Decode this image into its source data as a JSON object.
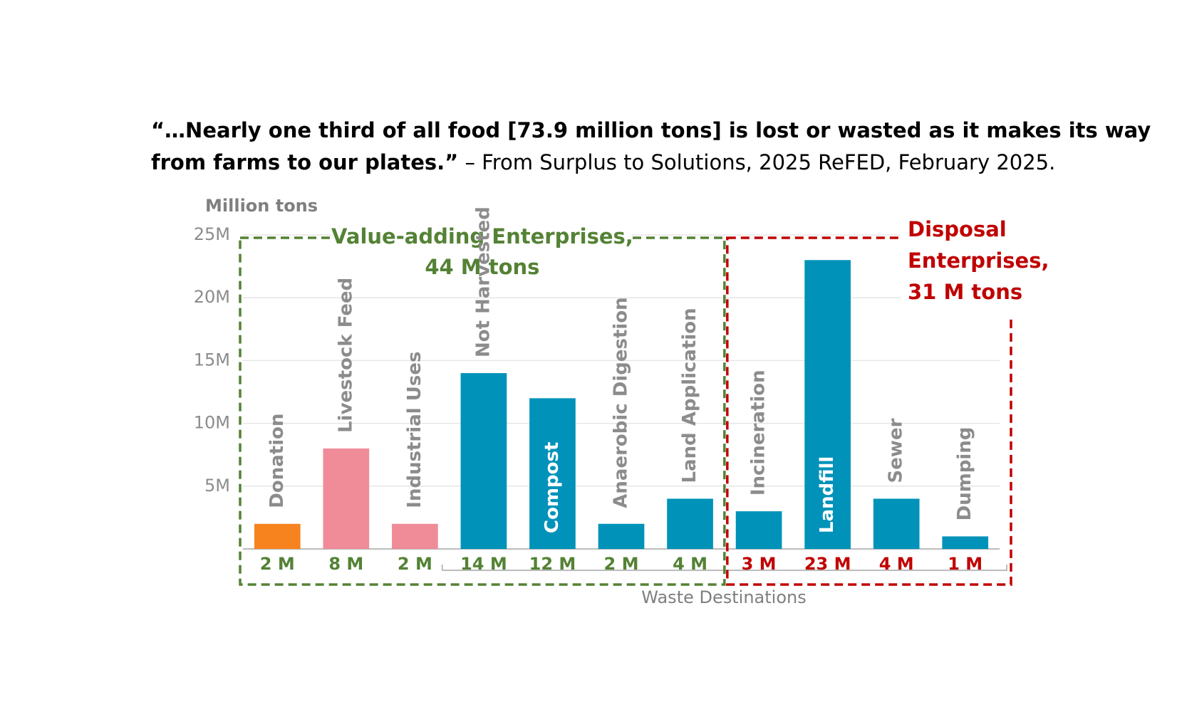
{
  "chart_data": {
    "type": "bar",
    "title": "“…Nearly one third of all food [73.9 million tons] is lost or wasted as it makes its way",
    "title_line2_bold": "from farms to our plates.”",
    "title_line2_rest": "– From Surplus to Solutions, 2025 ReFED, February 2025.",
    "y_axis_label": "Million tons",
    "x_axis_label": "Waste Destinations",
    "categories": [
      "Donation",
      "Livestock Feed",
      "Industrial Uses",
      "Not Harvested",
      "Compost",
      "Anaerobic Digestion",
      "Land Application",
      "Incineration",
      "Landfill",
      "Sewer",
      "Dumping"
    ],
    "values": [
      2,
      8,
      2,
      14,
      12,
      2,
      4,
      3,
      23,
      4,
      1
    ],
    "value_labels": [
      "2 M",
      "8 M",
      "2 M",
      "14 M",
      "12 M",
      "2 M",
      "4 M",
      "3 M",
      "23 M",
      "4 M",
      "1 M"
    ],
    "colors": [
      "#f7831f",
      "#f08b98",
      "#f08b98",
      "#0092b9",
      "#0092b9",
      "#0092b9",
      "#0092b9",
      "#0092b9",
      "#0092b9",
      "#0092b9",
      "#0092b9"
    ],
    "label_colors": [
      "#548235",
      "#548235",
      "#548235",
      "#548235",
      "#548235",
      "#548235",
      "#548235",
      "#c00000",
      "#c00000",
      "#c00000",
      "#c00000"
    ],
    "groups": [
      {
        "lines": [
          "Value-adding Enterprises,",
          "44 M tons"
        ],
        "color": "#548235"
      },
      {
        "lines": [
          "Disposal",
          "Enterprises,",
          "31 M tons"
        ],
        "color": "#c00000"
      }
    ],
    "ylim": [
      0,
      25
    ],
    "yticks": [
      {
        "value": 5,
        "label": "5M"
      },
      {
        "value": 10,
        "label": "10M"
      },
      {
        "value": 15,
        "label": "15M"
      },
      {
        "value": 20,
        "label": "20M"
      },
      {
        "value": 25,
        "label": "25M"
      }
    ],
    "grid": true
  }
}
